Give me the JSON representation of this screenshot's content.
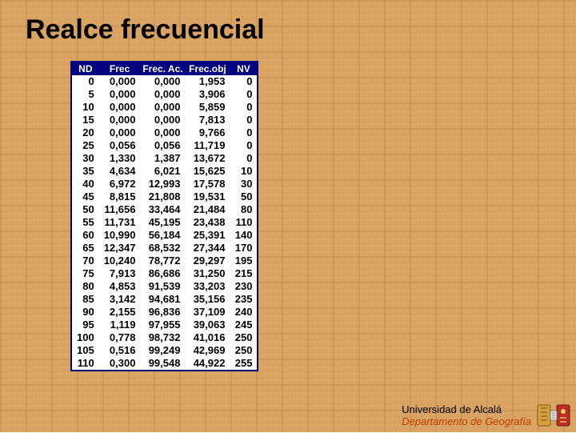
{
  "title": "Realce frecuencial",
  "footer": {
    "university": "Universidad de Alcalá",
    "department": "Departamento de Geografía"
  },
  "table": {
    "columns": [
      "ND",
      "Frec",
      "Frec. Ac.",
      "Frec.obj",
      "NV"
    ],
    "header_bg": "#000080",
    "header_color": "#ffffff",
    "cell_color": "#000000",
    "background": "#ffffff",
    "font_size": 13,
    "rows": [
      [
        "0",
        "0,000",
        "0,000",
        "1,953",
        "0"
      ],
      [
        "5",
        "0,000",
        "0,000",
        "3,906",
        "0"
      ],
      [
        "10",
        "0,000",
        "0,000",
        "5,859",
        "0"
      ],
      [
        "15",
        "0,000",
        "0,000",
        "7,813",
        "0"
      ],
      [
        "20",
        "0,000",
        "0,000",
        "9,766",
        "0"
      ],
      [
        "25",
        "0,056",
        "0,056",
        "11,719",
        "0"
      ],
      [
        "30",
        "1,330",
        "1,387",
        "13,672",
        "0"
      ],
      [
        "35",
        "4,634",
        "6,021",
        "15,625",
        "10"
      ],
      [
        "40",
        "6,972",
        "12,993",
        "17,578",
        "30"
      ],
      [
        "45",
        "8,815",
        "21,808",
        "19,531",
        "50"
      ],
      [
        "50",
        "11,656",
        "33,464",
        "21,484",
        "80"
      ],
      [
        "55",
        "11,731",
        "45,195",
        "23,438",
        "110"
      ],
      [
        "60",
        "10,990",
        "56,184",
        "25,391",
        "140"
      ],
      [
        "65",
        "12,347",
        "68,532",
        "27,344",
        "170"
      ],
      [
        "70",
        "10,240",
        "78,772",
        "29,297",
        "195"
      ],
      [
        "75",
        "7,913",
        "86,686",
        "31,250",
        "215"
      ],
      [
        "80",
        "4,853",
        "91,539",
        "33,203",
        "230"
      ],
      [
        "85",
        "3,142",
        "94,681",
        "35,156",
        "235"
      ],
      [
        "90",
        "2,155",
        "96,836",
        "37,109",
        "240"
      ],
      [
        "95",
        "1,119",
        "97,955",
        "39,063",
        "245"
      ],
      [
        "100",
        "0,778",
        "98,732",
        "41,016",
        "250"
      ],
      [
        "105",
        "0,516",
        "99,249",
        "42,969",
        "250"
      ],
      [
        "110",
        "0,300",
        "99,548",
        "44,922",
        "255"
      ]
    ]
  },
  "colors": {
    "page_bg": "#d9a464",
    "title_color": "#000000",
    "dept_color": "#c04000"
  }
}
